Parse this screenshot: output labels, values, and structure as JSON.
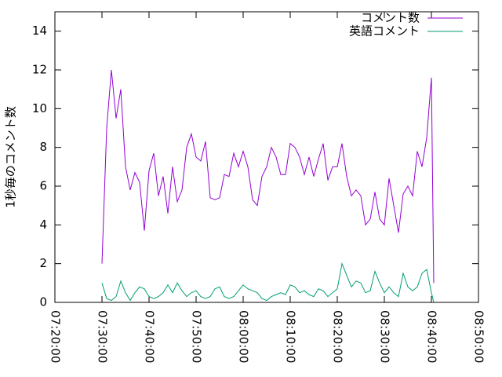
{
  "chart_data": {
    "type": "line",
    "ylabel": "1秒毎のコメント数",
    "x": [
      "07:30:00",
      "07:31:00",
      "07:32:00",
      "07:33:00",
      "07:34:00",
      "07:35:00",
      "07:36:00",
      "07:37:00",
      "07:38:00",
      "07:39:00",
      "07:40:00",
      "07:41:00",
      "07:42:00",
      "07:43:00",
      "07:44:00",
      "07:45:00",
      "07:46:00",
      "07:47:00",
      "07:48:00",
      "07:49:00",
      "07:50:00",
      "07:51:00",
      "07:52:00",
      "07:53:00",
      "07:54:00",
      "07:55:00",
      "07:56:00",
      "07:57:00",
      "07:58:00",
      "07:59:00",
      "08:00:00",
      "08:01:00",
      "08:02:00",
      "08:03:00",
      "08:04:00",
      "08:05:00",
      "08:06:00",
      "08:07:00",
      "08:08:00",
      "08:09:00",
      "08:10:00",
      "08:11:00",
      "08:12:00",
      "08:13:00",
      "08:14:00",
      "08:15:00",
      "08:16:00",
      "08:17:00",
      "08:18:00",
      "08:19:00",
      "08:20:00",
      "08:21:00",
      "08:22:00",
      "08:23:00",
      "08:24:00",
      "08:25:00",
      "08:26:00",
      "08:27:00",
      "08:28:00",
      "08:29:00",
      "08:30:00",
      "08:31:00",
      "08:32:00",
      "08:33:00",
      "08:34:00",
      "08:35:00",
      "08:36:00",
      "08:37:00",
      "08:38:00",
      "08:39:00",
      "08:40:00",
      "08:40:30"
    ],
    "series": [
      {
        "name": "コメント数",
        "color": "#9400d3",
        "values": [
          2,
          9,
          12,
          9.5,
          11,
          7,
          5.8,
          6.7,
          6.2,
          3.7,
          6.8,
          7.7,
          5.5,
          6.5,
          4.6,
          7,
          5.2,
          5.8,
          8,
          8.7,
          7.5,
          7.3,
          8.3,
          5.4,
          5.3,
          5.4,
          6.6,
          6.5,
          7.7,
          7,
          7.8,
          7,
          5.3,
          5,
          6.5,
          7,
          8,
          7.5,
          6.6,
          6.6,
          8.2,
          8,
          7.5,
          6.6,
          7.5,
          6.5,
          7.4,
          8.2,
          6.3,
          7,
          7,
          8.2,
          6.5,
          5.5,
          5.8,
          5.5,
          4,
          4.3,
          5.7,
          4.3,
          4,
          6.4,
          5,
          3.6,
          5.6,
          6,
          5.5,
          7.8,
          7,
          8.5,
          11.6,
          1
        ]
      },
      {
        "name": "英語コメント",
        "color": "#009e73",
        "values": [
          1,
          0.2,
          0.1,
          0.3,
          1.1,
          0.5,
          0.1,
          0.5,
          0.8,
          0.7,
          0.3,
          0.2,
          0.3,
          0.5,
          0.9,
          0.5,
          1,
          0.6,
          0.3,
          0.5,
          0.6,
          0.3,
          0.2,
          0.3,
          0.7,
          0.8,
          0.3,
          0.2,
          0.3,
          0.6,
          0.9,
          0.7,
          0.6,
          0.5,
          0.2,
          0.1,
          0.3,
          0.4,
          0.5,
          0.4,
          0.9,
          0.8,
          0.5,
          0.6,
          0.4,
          0.3,
          0.7,
          0.6,
          0.3,
          0.5,
          0.7,
          2,
          1.4,
          0.8,
          1.1,
          1,
          0.5,
          0.6,
          1.6,
          1,
          0.5,
          0.8,
          0.5,
          0.3,
          1.5,
          0.8,
          0.6,
          0.8,
          1.5,
          1.7,
          0.5,
          0
        ]
      }
    ],
    "xlim": [
      "07:20:00",
      "08:50:00"
    ],
    "xticks": [
      "07:20:00",
      "07:30:00",
      "07:40:00",
      "07:50:00",
      "08:00:00",
      "08:10:00",
      "08:20:00",
      "08:30:00",
      "08:40:00",
      "08:50:00"
    ],
    "ylim": [
      0,
      15
    ],
    "yticks": [
      0,
      2,
      4,
      6,
      8,
      10,
      12,
      14
    ],
    "legend": "top-right"
  }
}
